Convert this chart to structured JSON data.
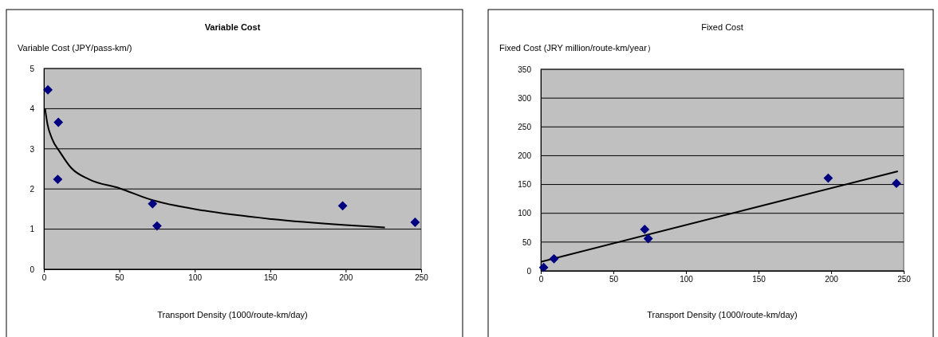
{
  "chart_data": [
    {
      "type": "scatter",
      "title": "Variable Cost",
      "ylabel": "Variable Cost (JPY/pass-km/)",
      "xlabel": "Transport Density (1000/route-km/day)",
      "xlim": [
        0,
        250
      ],
      "xticks": [
        0,
        50,
        100,
        150,
        200,
        250
      ],
      "ylim": [
        0,
        5
      ],
      "yticks": [
        0,
        1,
        2,
        3,
        4,
        5
      ],
      "grid": "y",
      "series": [
        {
          "marker": "diamond",
          "color": "#000080",
          "x": [
            2.7,
            9.6,
            9.2,
            72,
            75,
            198,
            246
          ],
          "values": [
            4.47,
            3.66,
            2.24,
            1.63,
            1.08,
            1.58,
            1.17
          ]
        },
        {
          "type": "line",
          "marker": "none",
          "color": "#000000",
          "x": [
            0.8,
            2.3,
            5.3,
            11,
            18,
            30,
            50,
            72,
            100,
            151,
            200,
            226
          ],
          "values": [
            4.0,
            3.63,
            3.26,
            2.9,
            2.53,
            2.24,
            2.02,
            1.72,
            1.5,
            1.25,
            1.1,
            1.04
          ]
        }
      ]
    },
    {
      "type": "scatter",
      "title": "Fixed Cost",
      "ylabel": "Fixed Cost (JRY million/route-km/year）",
      "xlabel": "Transport Density (1000/route-km/day)",
      "xlim": [
        0,
        250
      ],
      "xticks": [
        0,
        50,
        100,
        150,
        200,
        250
      ],
      "ylim": [
        0,
        350
      ],
      "yticks": [
        0,
        50,
        100,
        150,
        200,
        250,
        300,
        350
      ],
      "grid": "y",
      "series": [
        {
          "marker": "diamond",
          "color": "#000080",
          "x": [
            2,
            9.1,
            71.6,
            74,
            198,
            245
          ],
          "values": [
            6,
            21,
            72,
            56,
            161,
            152
          ]
        },
        {
          "type": "line",
          "marker": "none",
          "color": "#000000",
          "x": [
            0.4,
            246
          ],
          "values": [
            16,
            173
          ]
        }
      ]
    }
  ]
}
